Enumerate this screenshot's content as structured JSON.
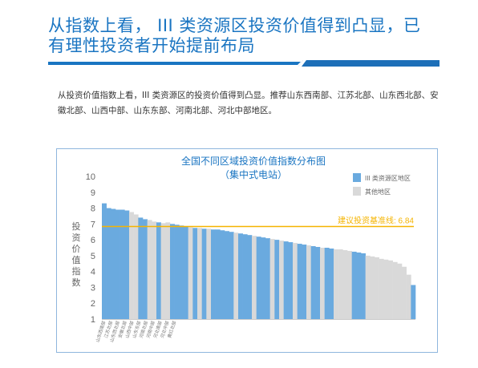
{
  "header": {
    "title_line1": "从指数上看， III 类资源区投资价值得到凸显，已",
    "title_line2": "有理性投资者开始提前布局"
  },
  "body": {
    "paragraph": "从投资价值指数上看，III 类资源区的投资价值得到凸显。推荐山东西南部、江苏北部、山东西北部、安徽北部、山西中部、山东东部、河南北部、河北中部地区。"
  },
  "colors": {
    "accent": "#1a75c2",
    "iii_bar": "#6aaadf",
    "other_bar": "#d9d9d9",
    "baseline": "#f5b400"
  },
  "chart_data": {
    "type": "bar",
    "title": "全国不同区域投资价值指数分布图",
    "subtitle": "（集中式电站）",
    "ylabel": "投资价值指数",
    "ylim": [
      1,
      10
    ],
    "yticks": [
      1,
      2,
      3,
      4,
      5,
      6,
      7,
      8,
      9,
      10
    ],
    "legend": {
      "placement": "top-right",
      "iii_label": "III 类资源区地区",
      "other_label": "其他地区"
    },
    "baseline": {
      "label": "建议投资基准线: 6.84",
      "value": 6.84
    },
    "x_tick_labels": [
      "山东西南部",
      "江苏北部",
      "山东西北部",
      "安徽北部",
      "山西中部",
      "山东东部",
      "河南北部",
      "河南中部",
      "河北南部",
      "河北中部",
      "黄红北部"
    ],
    "values": [
      8.3,
      8.0,
      7.95,
      7.9,
      7.9,
      7.85,
      7.75,
      7.6,
      7.4,
      7.3,
      7.25,
      7.15,
      7.1,
      7.05,
      7.1,
      7.0,
      6.95,
      6.9,
      6.85,
      6.8,
      6.75,
      6.75,
      6.7,
      6.7,
      6.65,
      6.65,
      6.6,
      6.55,
      6.5,
      6.45,
      6.4,
      6.35,
      6.3,
      6.25,
      6.2,
      6.15,
      6.1,
      6.05,
      6.0,
      5.95,
      5.9,
      5.85,
      5.8,
      5.75,
      5.7,
      5.65,
      5.6,
      5.55,
      5.5,
      5.5,
      5.45,
      5.4,
      5.4,
      5.35,
      5.3,
      5.25,
      5.2,
      5.15,
      5.0,
      4.95,
      4.9,
      4.8,
      4.75,
      4.7,
      4.6,
      4.5,
      4.3,
      3.8,
      3.15
    ],
    "category": [
      "iii",
      "iii",
      "iii",
      "iii",
      "iii",
      "iii",
      "other",
      "other",
      "iii",
      "iii",
      "other",
      "other",
      "iii",
      "other",
      "other",
      "iii",
      "iii",
      "iii",
      "iii",
      "other",
      "iii",
      "other",
      "iii",
      "other",
      "iii",
      "iii",
      "iii",
      "iii",
      "iii",
      "other",
      "iii",
      "iii",
      "iii",
      "other",
      "iii",
      "iii",
      "iii",
      "other",
      "iii",
      "other",
      "iii",
      "iii",
      "other",
      "iii",
      "iii",
      "other",
      "iii",
      "iii",
      "other",
      "iii",
      "iii",
      "other",
      "other",
      "other",
      "other",
      "iii",
      "iii",
      "iii",
      "other",
      "other",
      "other",
      "other",
      "other",
      "other",
      "other",
      "other",
      "other",
      "other",
      "iii"
    ]
  }
}
